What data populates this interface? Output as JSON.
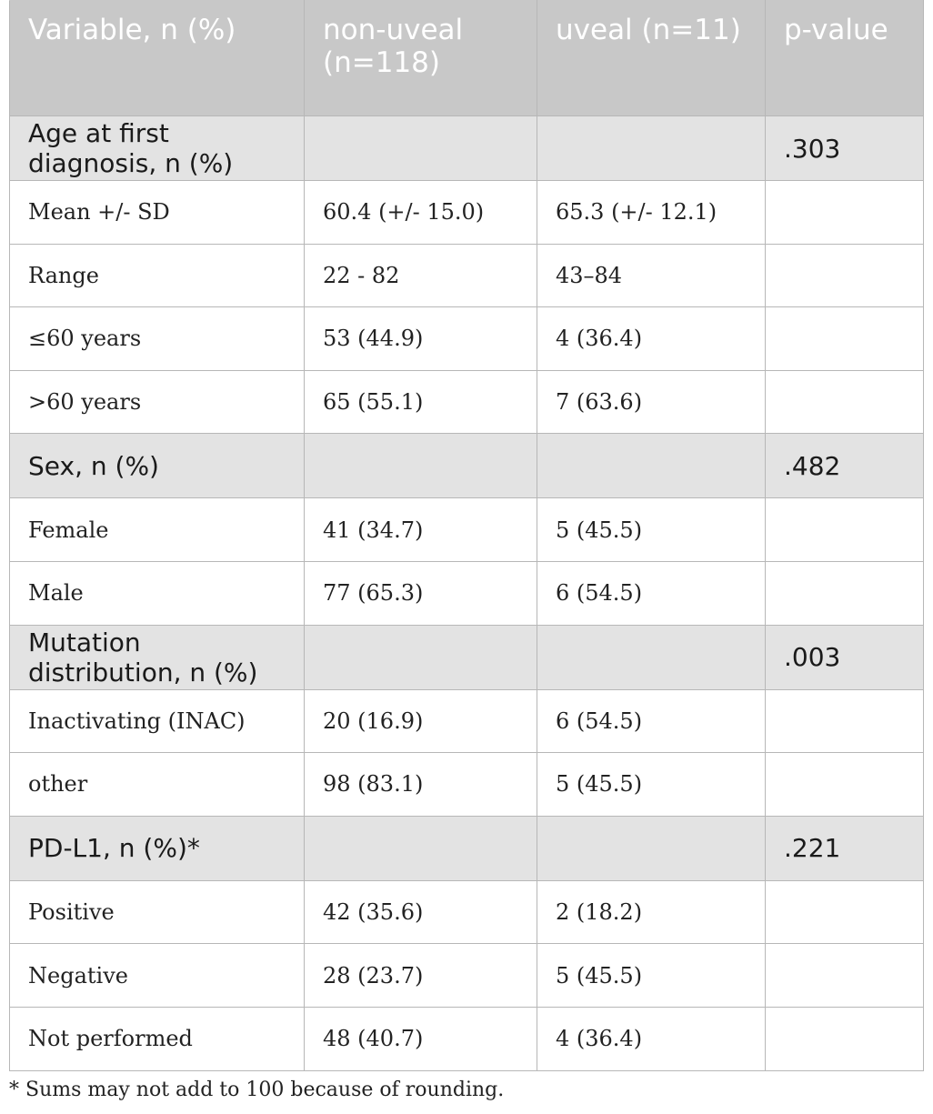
{
  "headers": [
    "Variable, n (%)",
    "non-uveal (n=118)",
    "uveal (n=11)",
    "p-value"
  ],
  "groups": [
    {
      "label": "Age at first diagnosis, n (%)",
      "p_value": ".303",
      "rows": [
        {
          "label": "Mean +/- SD",
          "non_uveal": "60.4 (+/- 15.0)",
          "uveal": "65.3 (+/- 12.1)"
        },
        {
          "label": "Range",
          "non_uveal": "22 - 82",
          "uveal": "43–84"
        },
        {
          "label": "≤60 years",
          "non_uveal": "53 (44.9)",
          "uveal": "4 (36.4)"
        },
        {
          "label": ">60 years",
          "non_uveal": "65 (55.1)",
          "uveal": "7 (63.6)"
        }
      ]
    },
    {
      "label": "Sex, n (%)",
      "p_value": ".482",
      "rows": [
        {
          "label": "Female",
          "non_uveal": "41 (34.7)",
          "uveal": "5 (45.5)"
        },
        {
          "label": "Male",
          "non_uveal": "77 (65.3)",
          "uveal": "6 (54.5)"
        }
      ]
    },
    {
      "label": "Mutation distribution, n (%)",
      "p_value": ".003",
      "rows": [
        {
          "label": "Inactivating (INAC)",
          "non_uveal": "20 (16.9)",
          "uveal": "6 (54.5)"
        },
        {
          "label": "other",
          "non_uveal": "98 (83.1)",
          "uveal": "5 (45.5)"
        }
      ]
    },
    {
      "label": "PD-L1, n (%)*",
      "p_value": ".221",
      "rows": [
        {
          "label": "Positive",
          "non_uveal": "42 (35.6)",
          "uveal": "2 (18.2)"
        },
        {
          "label": "Negative",
          "non_uveal": "28 (23.7)",
          "uveal": "5 (45.5)"
        },
        {
          "label": "Not performed",
          "non_uveal": "48 (40.7)",
          "uveal": "4 (36.4)"
        }
      ]
    }
  ],
  "footnote": "* Sums may not add to 100 because of rounding."
}
